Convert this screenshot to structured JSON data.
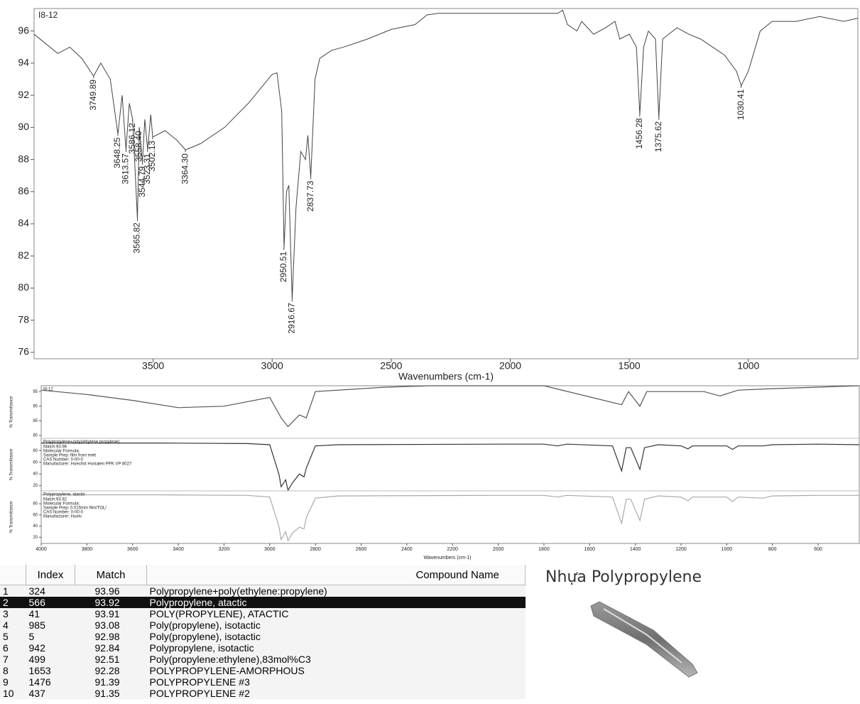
{
  "chart_data": [
    {
      "type": "line",
      "title": "I8-12",
      "x_label": "Wavenumbers (cm-1)",
      "color": "#444444",
      "xlim": [
        4000,
        540
      ],
      "ylim": [
        75.6,
        97.4
      ],
      "xticks": [
        3500,
        3000,
        2500,
        2000,
        1500,
        1000
      ],
      "yticks": [
        76,
        78,
        80,
        82,
        84,
        86,
        88,
        90,
        92,
        94,
        96
      ],
      "x": [
        4000,
        3950,
        3900,
        3850,
        3800,
        3750,
        3720,
        3680,
        3648,
        3630,
        3614,
        3600,
        3586,
        3566,
        3558,
        3545,
        3535,
        3523,
        3510,
        3502,
        3450,
        3400,
        3364,
        3300,
        3200,
        3100,
        3000,
        2980,
        2960,
        2950,
        2940,
        2930,
        2916,
        2900,
        2880,
        2860,
        2850,
        2838,
        2820,
        2800,
        2750,
        2700,
        2600,
        2500,
        2400,
        2350,
        2300,
        2000,
        1800,
        1780,
        1760,
        1720,
        1700,
        1650,
        1600,
        1560,
        1540,
        1500,
        1470,
        1456,
        1440,
        1420,
        1390,
        1376,
        1360,
        1300,
        1250,
        1200,
        1150,
        1100,
        1050,
        1030,
        1000,
        970,
        950,
        900,
        800,
        700,
        600,
        540
      ],
      "values": [
        95.8,
        95.2,
        94.6,
        95.0,
        94.3,
        93.2,
        94.0,
        93.0,
        89.6,
        92.0,
        88.6,
        91.5,
        90.5,
        84.3,
        90.0,
        87.8,
        90.5,
        88.6,
        90.8,
        89.4,
        89.8,
        89.2,
        88.6,
        89.0,
        90.0,
        91.5,
        93.3,
        93.4,
        91.0,
        82.5,
        86.0,
        86.4,
        79.3,
        85.0,
        88.5,
        88.0,
        89.5,
        86.9,
        93.0,
        94.3,
        94.8,
        95.0,
        95.5,
        96.1,
        96.4,
        97.0,
        97.1,
        97.1,
        97.1,
        97.3,
        96.4,
        96.0,
        96.6,
        95.8,
        96.2,
        96.6,
        95.5,
        95.8,
        95.0,
        90.8,
        95.0,
        96.0,
        95.5,
        90.6,
        95.5,
        96.2,
        95.8,
        95.5,
        95.0,
        94.5,
        93.5,
        92.6,
        93.5,
        95.0,
        96.0,
        96.6,
        96.6,
        96.9,
        96.6,
        96.8
      ],
      "peaks": [
        {
          "x": 3749.89,
          "y": 93.2,
          "label": "3749.89"
        },
        {
          "x": 3648.25,
          "y": 89.6,
          "label": "3648.25"
        },
        {
          "x": 3613.57,
          "y": 88.6,
          "label": "3613.57"
        },
        {
          "x": 3586.12,
          "y": 90.5,
          "label": "3586.12"
        },
        {
          "x": 3565.82,
          "y": 84.3,
          "label": "3565.82"
        },
        {
          "x": 3558.4,
          "y": 90.0,
          "label": "3558.40"
        },
        {
          "x": 3544.79,
          "y": 87.8,
          "label": "3544.79"
        },
        {
          "x": 3523.31,
          "y": 88.6,
          "label": "3523.31"
        },
        {
          "x": 3502.13,
          "y": 89.4,
          "label": "3502.13"
        },
        {
          "x": 3364.3,
          "y": 88.6,
          "label": "3364.30"
        },
        {
          "x": 2950.51,
          "y": 82.5,
          "label": "2950.51"
        },
        {
          "x": 2916.67,
          "y": 79.3,
          "label": "2916.67"
        },
        {
          "x": 2837.73,
          "y": 86.9,
          "label": "2837.73"
        },
        {
          "x": 1456.28,
          "y": 90.8,
          "label": "1456.28"
        },
        {
          "x": 1375.62,
          "y": 90.6,
          "label": "1375.62"
        },
        {
          "x": 1030.41,
          "y": 92.6,
          "label": "1030.41"
        }
      ]
    },
    {
      "type": "stacked_line",
      "x_label": "Wavenumbers (cm-1)",
      "xlim": [
        4000,
        420
      ],
      "xticks": [
        4000,
        3800,
        3600,
        3400,
        3200,
        3000,
        2800,
        2600,
        2400,
        2200,
        2000,
        1800,
        1600,
        1400,
        1200,
        1000,
        800,
        600
      ],
      "panels": [
        {
          "name": "I8-12",
          "y_label": "% Transmittance",
          "color": "#555555",
          "info": [],
          "ylim": [
            79,
            97
          ],
          "yticks": [
            80,
            85,
            90,
            95
          ],
          "x": [
            4000,
            3800,
            3600,
            3400,
            3200,
            3000,
            2950,
            2920,
            2870,
            2840,
            2800,
            2500,
            2300,
            1800,
            1460,
            1430,
            1380,
            1350,
            1100,
            1030,
            950,
            800,
            420
          ],
          "values": [
            95.5,
            94,
            92,
            89.5,
            90,
            93,
            86,
            83,
            87,
            86,
            95,
            96.5,
            97,
            97,
            90.5,
            95,
            90,
            95,
            95,
            93.5,
            95.5,
            96,
            97
          ]
        },
        {
          "name": "Polypropylene+poly(ethylene:propylene)",
          "y_label": "% Transmittance",
          "color": "#333333",
          "info": [
            "Match:93.96",
            "Molecular Formula:",
            "Sample Prep:  film from melt",
            "CAS Number:      0-00-0",
            "Manufacturer:  Hoechst Hostalen PPK VP 8027"
          ],
          "ylim": [
            11,
            101
          ],
          "yticks": [
            20,
            40,
            60,
            80
          ],
          "x": [
            4000,
            3500,
            3100,
            3000,
            2960,
            2950,
            2930,
            2920,
            2900,
            2870,
            2850,
            2840,
            2800,
            2700,
            2000,
            1800,
            1740,
            1700,
            1500,
            1460,
            1440,
            1420,
            1380,
            1360,
            1300,
            1200,
            1170,
            1150,
            1000,
            975,
            950,
            840,
            800,
            600,
            420
          ],
          "values": [
            93,
            93,
            92,
            90,
            40,
            18,
            30,
            12,
            25,
            40,
            35,
            50,
            88,
            90,
            91,
            91,
            88,
            91,
            88,
            45,
            85,
            85,
            48,
            85,
            90,
            88,
            83,
            88,
            88,
            82,
            88,
            88,
            90,
            91,
            90
          ]
        },
        {
          "name": "Polypropylene, atactic",
          "y_label": "% Transmittance",
          "color": "#aaaaaa",
          "info": [
            "Match:93.92",
            "Molecular Formula:",
            "Sample Prep:  0.015mm film/TOL/",
            "CAS Number:      0-00-0",
            "Manufacturer:  Huels"
          ],
          "ylim": [
            9,
            103
          ],
          "yticks": [
            20,
            40,
            60,
            80
          ],
          "x": [
            4000,
            3500,
            3100,
            3000,
            2960,
            2950,
            2930,
            2920,
            2900,
            2870,
            2850,
            2840,
            2800,
            2700,
            2000,
            1800,
            1740,
            1700,
            1500,
            1460,
            1440,
            1420,
            1380,
            1360,
            1300,
            1200,
            1170,
            1150,
            1000,
            975,
            950,
            840,
            800,
            600,
            420
          ],
          "values": [
            96,
            96,
            95,
            92,
            40,
            16,
            30,
            14,
            28,
            38,
            35,
            55,
            90,
            94,
            95,
            95,
            92,
            95,
            92,
            45,
            88,
            88,
            50,
            88,
            94,
            92,
            85,
            92,
            92,
            84,
            92,
            90,
            94,
            95,
            95
          ]
        }
      ]
    }
  ],
  "table": {
    "headers": [
      "Index",
      "Match",
      "Compound Name"
    ],
    "selected_row": 1,
    "rows": [
      [
        "1",
        "324",
        "93.96",
        "Polypropylene+poly(ethylene:propylene)"
      ],
      [
        "2",
        "566",
        "93.92",
        "Polypropylene, atactic"
      ],
      [
        "3",
        "41",
        "93.91",
        "POLY(PROPYLENE), ATACTIC"
      ],
      [
        "4",
        "985",
        "93.08",
        "Poly(propylene), isotactic"
      ],
      [
        "5",
        "5",
        "92.98",
        "Poly(propylene), isotactic"
      ],
      [
        "6",
        "942",
        "92.84",
        "Polypropylene, isotactic"
      ],
      [
        "7",
        "499",
        "92.51",
        "Poly(propylene:ethylene),83mol%C3"
      ],
      [
        "8",
        "1653",
        "92.28",
        "POLYPROPYLENE-AMORPHOUS"
      ],
      [
        "9",
        "1476",
        "91.39",
        "POLYPROPYLENE #3"
      ],
      [
        "10",
        "437",
        "91.35",
        "POLYPROPYLENE #2"
      ]
    ]
  },
  "photo": {
    "title": "Nhựa Polypropylene"
  }
}
